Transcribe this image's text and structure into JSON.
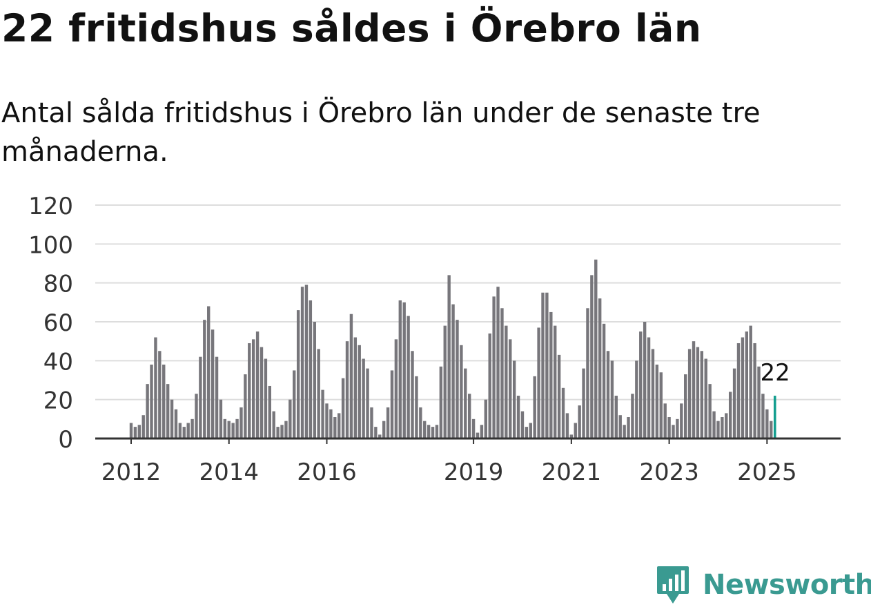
{
  "header": {
    "title": "22 fritidshus såldes i Örebro län",
    "subtitle": "Antal sålda fritidshus i Örebro län under de senaste tre månaderna."
  },
  "brand": {
    "name": "Newsworthy",
    "icon": "newsworthy-logo-icon",
    "color": "#3a9a91"
  },
  "colors": {
    "bar": "#77767b",
    "highlight": "#139e8f",
    "grid": "#dddddd",
    "axis": "#333333"
  },
  "chart_data": {
    "type": "bar",
    "title": "",
    "xlabel": "",
    "ylabel": "",
    "ylim": [
      0,
      120
    ],
    "y_ticks": [
      0,
      20,
      40,
      60,
      80,
      100,
      120
    ],
    "x_tick_labels": [
      "2012",
      "2014",
      "2016",
      "2019",
      "2021",
      "2023",
      "2025"
    ],
    "grid": true,
    "start_month": "2012-01",
    "end_month": "2025-03",
    "highlight_label": "22",
    "series": [
      {
        "values": [
          8,
          6,
          7,
          12,
          28,
          38,
          52,
          45,
          38,
          28,
          20,
          15,
          8,
          6,
          8,
          10,
          23,
          42,
          61,
          68,
          56,
          42,
          20,
          10,
          9,
          8,
          10,
          16,
          33,
          49,
          51,
          55,
          47,
          41,
          27,
          14,
          6,
          7,
          9,
          20,
          35,
          66,
          78,
          79,
          71,
          60,
          46,
          25,
          18,
          15,
          11,
          13,
          31,
          50,
          64,
          52,
          48,
          41,
          36,
          16,
          6,
          2,
          9,
          16,
          35,
          51,
          71,
          70,
          63,
          45,
          32,
          16,
          9,
          7,
          6,
          7,
          37,
          58,
          84,
          69,
          61,
          48,
          36,
          23,
          10,
          3,
          7,
          20,
          54,
          73,
          78,
          67,
          58,
          51,
          40,
          22,
          14,
          6,
          8,
          32,
          57,
          75,
          75,
          65,
          58,
          43,
          26,
          13,
          2,
          8,
          17,
          36,
          67,
          84,
          92,
          72,
          59,
          45,
          40,
          22,
          12,
          7,
          11,
          23,
          40,
          55,
          60,
          52,
          46,
          38,
          34,
          18,
          11,
          7,
          10,
          18,
          33,
          46,
          50,
          47,
          45,
          41,
          28,
          14,
          9,
          11,
          13,
          24,
          36,
          49,
          52,
          55,
          58,
          49,
          37,
          23,
          15,
          9,
          22
        ]
      }
    ]
  }
}
